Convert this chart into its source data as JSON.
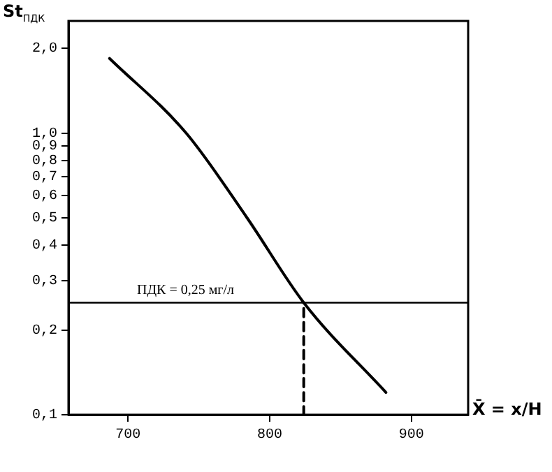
{
  "chart_data": {
    "type": "line",
    "ylabel": "St$_{ПДК}$",
    "xlabel": "X̄ = x/Н",
    "log": "y",
    "grid": false,
    "legend": false,
    "marker": "none",
    "xlim": [
      658,
      940
    ],
    "xticks": [
      700,
      800,
      900
    ],
    "ylim": [
      0.1,
      2.5
    ],
    "yticks": [
      {
        "value": 0.1,
        "label": "0,1"
      },
      {
        "value": 0.2,
        "label": "0,2"
      },
      {
        "value": 0.3,
        "label": "0,3"
      },
      {
        "value": 0.4,
        "label": "0,4"
      },
      {
        "value": 0.5,
        "label": "0,5"
      },
      {
        "value": 0.6,
        "label": "0,6"
      },
      {
        "value": 0.7,
        "label": "0,7"
      },
      {
        "value": 0.8,
        "label": "0,8"
      },
      {
        "value": 0.9,
        "label": "0,9"
      },
      {
        "value": 1.0,
        "label": "1,0"
      },
      {
        "value": 2.0,
        "label": "2,0"
      }
    ],
    "series": [
      {
        "color": "#000000",
        "line_style": "solid",
        "x": [
          687,
          741,
          784,
          824,
          882
        ],
        "values": [
          1.84,
          1.0,
          0.5,
          0.25,
          0.12
        ]
      },
      {
        "color": "#000000",
        "line_style": "dashed",
        "x": [
          824,
          824
        ],
        "values": [
          0.1,
          0.25
        ]
      }
    ],
    "ref_lines": [
      {
        "axis": "y",
        "value": 0.25,
        "label": "ПДК = 0,25 мг/л",
        "color": "#000000",
        "line_style": "solid"
      }
    ]
  }
}
